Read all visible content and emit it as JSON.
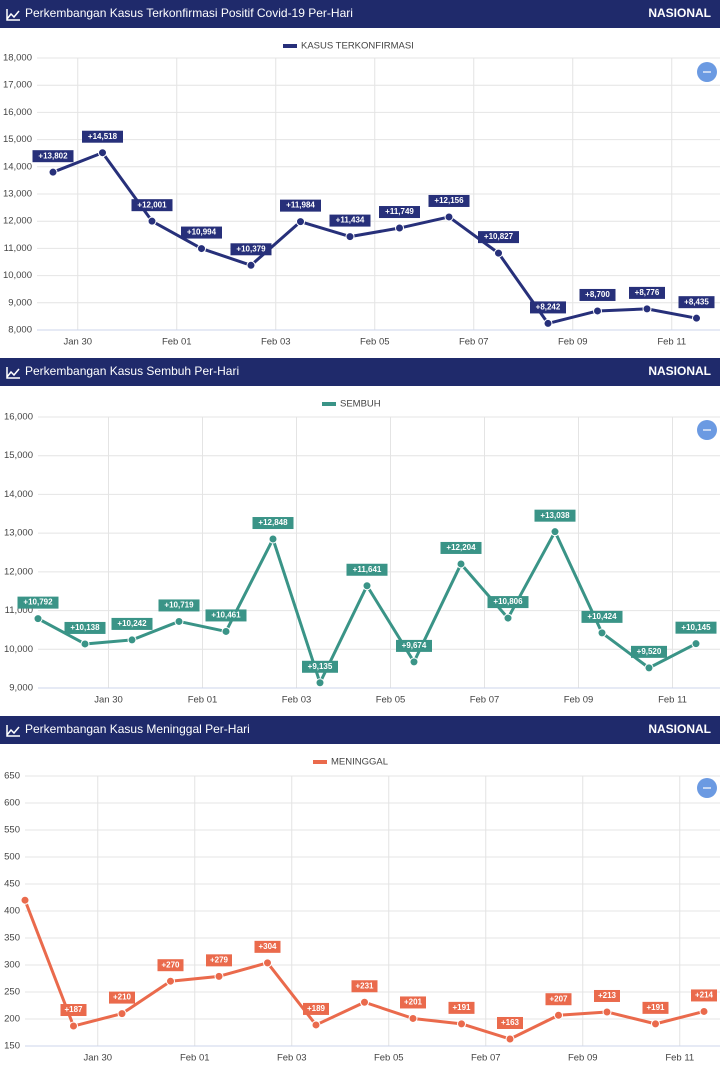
{
  "chart_data": [
    {
      "type": "line",
      "title": "Perkembangan Kasus Terkonfirmasi Positif Covid-19 Per-Hari",
      "region": "NASIONAL",
      "categories": [
        null,
        "Jan 30",
        null,
        "Feb 01",
        null,
        "Feb 03",
        null,
        "Feb 05",
        null,
        "Feb 07",
        null,
        "Feb 09",
        null,
        "Feb 11"
      ],
      "series": [
        {
          "name": "KASUS TERKONFIRMASI",
          "color": "#27307a",
          "values": [
            13802,
            14518,
            12001,
            10994,
            10379,
            11984,
            11434,
            11749,
            12156,
            10827,
            8242,
            8700,
            8776,
            8435
          ],
          "value_labels": [
            "+13,802",
            "+14,518",
            "+12,001",
            "+10,994",
            "+10,379",
            "+11,984",
            "+11,434",
            "+11,749",
            "+12,156",
            "+10,827",
            "+8,242",
            "+8,700",
            "+8,776",
            "+8,435"
          ]
        }
      ],
      "ylim": [
        8000,
        18000
      ],
      "yticks": [
        {
          "value": 8000,
          "label": "8,000"
        },
        {
          "value": 9000,
          "label": "9,000"
        },
        {
          "value": 10000,
          "label": "10,000"
        },
        {
          "value": 11000,
          "label": "11,000"
        },
        {
          "value": 12000,
          "label": "12,000"
        },
        {
          "value": 13000,
          "label": "13,000"
        },
        {
          "value": 14000,
          "label": "14,000"
        },
        {
          "value": 15000,
          "label": "15,000"
        },
        {
          "value": 16000,
          "label": "16,000"
        },
        {
          "value": 17000,
          "label": "17,000"
        },
        {
          "value": 18000,
          "label": "18,000"
        }
      ],
      "grid": true
    },
    {
      "type": "line",
      "title": "Perkembangan Kasus Sembuh Per-Hari",
      "region": "NASIONAL",
      "categories": [
        null,
        null,
        "Jan 30",
        null,
        "Feb 01",
        null,
        "Feb 03",
        null,
        "Feb 05",
        null,
        "Feb 07",
        null,
        "Feb 09",
        null,
        "Feb 11"
      ],
      "series": [
        {
          "name": "SEMBUH",
          "color": "#3a9487",
          "values": [
            10792,
            10138,
            10242,
            10719,
            10461,
            12848,
            9135,
            11641,
            9674,
            12204,
            10806,
            13038,
            10424,
            9520,
            10145
          ],
          "value_labels": [
            "+10,792",
            "+10,138",
            "+10,242",
            "+10,719",
            "+10,461",
            "+12,848",
            "+9,135",
            "+11,641",
            "+9,674",
            "+12,204",
            "+10,806",
            "+13,038",
            "+10,424",
            "+9,520",
            "+10,145"
          ]
        }
      ],
      "ylim": [
        9000,
        16000
      ],
      "yticks": [
        {
          "value": 9000,
          "label": "9,000"
        },
        {
          "value": 10000,
          "label": "10,000"
        },
        {
          "value": 11000,
          "label": "11,000"
        },
        {
          "value": 12000,
          "label": "12,000"
        },
        {
          "value": 13000,
          "label": "13,000"
        },
        {
          "value": 14000,
          "label": "14,000"
        },
        {
          "value": 15000,
          "label": "15,000"
        },
        {
          "value": 16000,
          "label": "16,000"
        }
      ],
      "grid": true
    },
    {
      "type": "line",
      "title": "Perkembangan Kasus Meninggal Per-Hari",
      "region": "NASIONAL",
      "categories": [
        null,
        null,
        "Jan 30",
        null,
        "Feb 01",
        null,
        "Feb 03",
        null,
        "Feb 05",
        null,
        "Feb 07",
        null,
        "Feb 09",
        null,
        "Feb 11"
      ],
      "series": [
        {
          "name": "MENINGGAL",
          "color": "#ea6a4c",
          "values": [
            420,
            187,
            210,
            270,
            279,
            304,
            189,
            231,
            201,
            191,
            163,
            207,
            213,
            191,
            214
          ],
          "value_labels": [
            null,
            "+187",
            "+210",
            "+270",
            "+279",
            "+304",
            "+189",
            "+231",
            "+201",
            "+191",
            "+163",
            "+207",
            "+213",
            "+191",
            "+214"
          ]
        }
      ],
      "ylim": [
        150,
        650
      ],
      "yticks": [
        150,
        200,
        250,
        300,
        350,
        400,
        450,
        500,
        550,
        600,
        650
      ],
      "grid": true
    }
  ]
}
